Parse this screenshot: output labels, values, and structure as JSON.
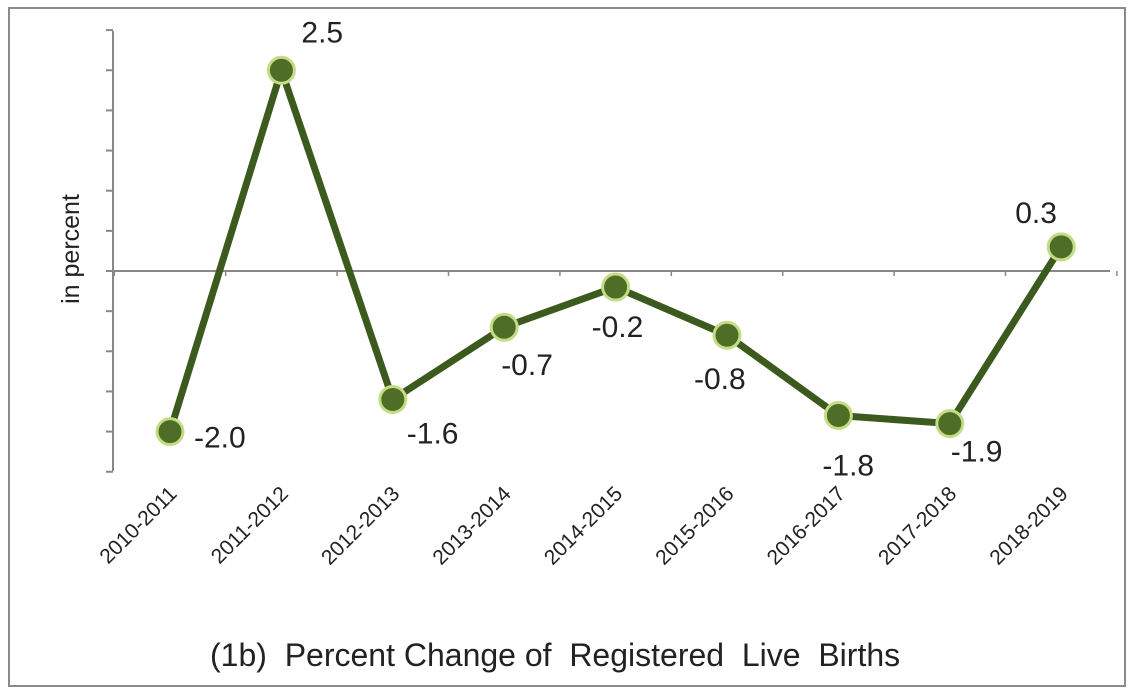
{
  "chart_data": {
    "type": "line",
    "title": "(1b)  Percent Change of  Registered  Live  Births",
    "xlabel": "",
    "ylabel": "in percent",
    "categories": [
      "2010-2011",
      "2011-2012",
      "2012-2013",
      "2013-2014",
      "2014-2015",
      "2015-2016",
      "2016-2017",
      "2017-2018",
      "2018-2019"
    ],
    "series": [
      {
        "values": [
          -2.0,
          2.5,
          -1.6,
          -0.7,
          -0.2,
          -0.8,
          -1.8,
          -1.9,
          0.3
        ],
        "labels": [
          "-2.0",
          "2.5",
          "-1.6",
          "-0.7",
          "-0.2",
          "-0.8",
          "-1.8",
          "-1.9",
          "0.3"
        ]
      }
    ],
    "ylim": [
      -2.5,
      3.0
    ],
    "grid": false,
    "legend": "none",
    "colors": {
      "line": "#3d5a1e",
      "marker_fill": "#4e6e27",
      "marker_edge": "#c5dc86",
      "axis": "#888888"
    }
  }
}
